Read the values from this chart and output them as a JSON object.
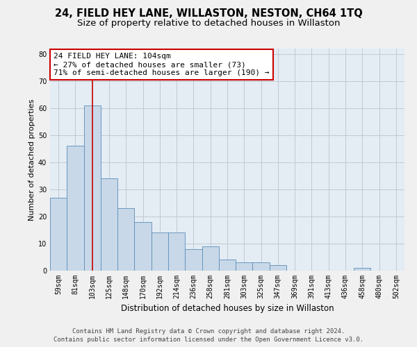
{
  "title": "24, FIELD HEY LANE, WILLASTON, NESTON, CH64 1TQ",
  "subtitle": "Size of property relative to detached houses in Willaston",
  "xlabel": "Distribution of detached houses by size in Willaston",
  "ylabel": "Number of detached properties",
  "categories": [
    "59sqm",
    "81sqm",
    "103sqm",
    "125sqm",
    "148sqm",
    "170sqm",
    "192sqm",
    "214sqm",
    "236sqm",
    "258sqm",
    "281sqm",
    "303sqm",
    "325sqm",
    "347sqm",
    "369sqm",
    "391sqm",
    "413sqm",
    "436sqm",
    "458sqm",
    "480sqm",
    "502sqm"
  ],
  "values": [
    27,
    46,
    61,
    34,
    23,
    18,
    14,
    14,
    8,
    9,
    4,
    3,
    3,
    2,
    0,
    0,
    0,
    0,
    1,
    0,
    0
  ],
  "bar_color": "#c8d8e8",
  "bar_edge_color": "#5b8db8",
  "highlight_bar_index": 2,
  "highlight_line_color": "#cc0000",
  "annotation_text": "24 FIELD HEY LANE: 104sqm\n← 27% of detached houses are smaller (73)\n71% of semi-detached houses are larger (190) →",
  "annotation_box_color": "#ffffff",
  "annotation_box_edge_color": "#cc0000",
  "ylim": [
    0,
    82
  ],
  "yticks": [
    0,
    10,
    20,
    30,
    40,
    50,
    60,
    70,
    80
  ],
  "grid_color": "#c0c8d0",
  "bg_color": "#e4ecf4",
  "footer_line1": "Contains HM Land Registry data © Crown copyright and database right 2024.",
  "footer_line2": "Contains public sector information licensed under the Open Government Licence v3.0.",
  "title_fontsize": 10.5,
  "subtitle_fontsize": 9.5,
  "xlabel_fontsize": 8.5,
  "ylabel_fontsize": 8,
  "tick_fontsize": 7,
  "annotation_fontsize": 8,
  "footer_fontsize": 6.5
}
